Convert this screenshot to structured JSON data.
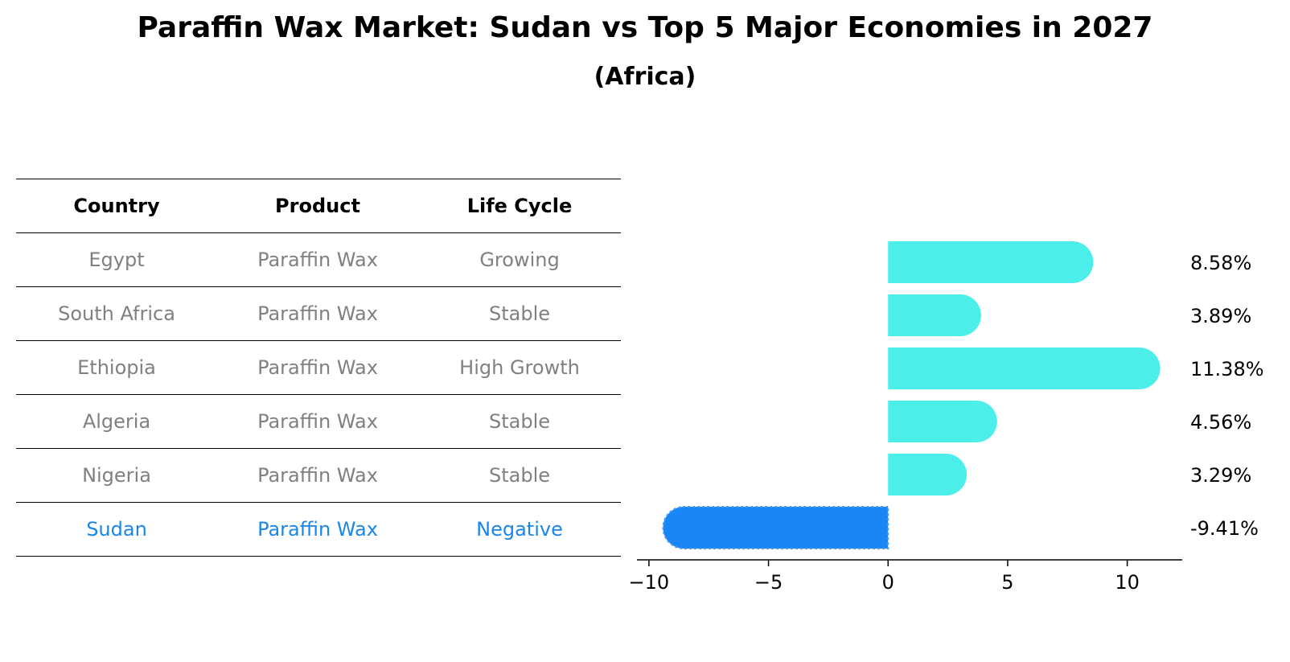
{
  "title": "Paraffin Wax Market: Sudan vs Top 5 Major Economies in 2027",
  "subtitle": "(Africa)",
  "table": {
    "headers": [
      "Country",
      "Product",
      "Life Cycle"
    ],
    "rows": [
      [
        "Egypt",
        "Paraffin Wax",
        "Growing"
      ],
      [
        "South Africa",
        "Paraffin Wax",
        "Stable"
      ],
      [
        "Ethiopia",
        "Paraffin Wax",
        "High Growth"
      ],
      [
        "Algeria",
        "Paraffin Wax",
        "Stable"
      ],
      [
        "Nigeria",
        "Paraffin Wax",
        "Stable"
      ],
      [
        "Sudan",
        "Paraffin Wax",
        "Negative"
      ]
    ]
  },
  "colors": {
    "positive_bar": "#4ceeea",
    "highlight_bar": "#1a86f5",
    "highlight_text": "#1a86e8",
    "row_text": "#808080"
  },
  "chart_data": {
    "type": "bar",
    "orientation": "horizontal",
    "categories": [
      "Egypt",
      "South Africa",
      "Ethiopia",
      "Algeria",
      "Nigeria",
      "Sudan"
    ],
    "values": [
      8.58,
      3.89,
      11.38,
      4.56,
      3.29,
      -9.41
    ],
    "value_labels": [
      "8.58%",
      "3.89%",
      "11.38%",
      "4.56%",
      "3.29%",
      "-9.41%"
    ],
    "highlight": "Sudan",
    "xlim": [
      -10.5,
      12.3
    ],
    "xticks": [
      -10,
      -5,
      0,
      5,
      10
    ],
    "xtick_labels": [
      "−10",
      "−5",
      "0",
      "5",
      "10"
    ],
    "grid": false,
    "legend": "none"
  }
}
